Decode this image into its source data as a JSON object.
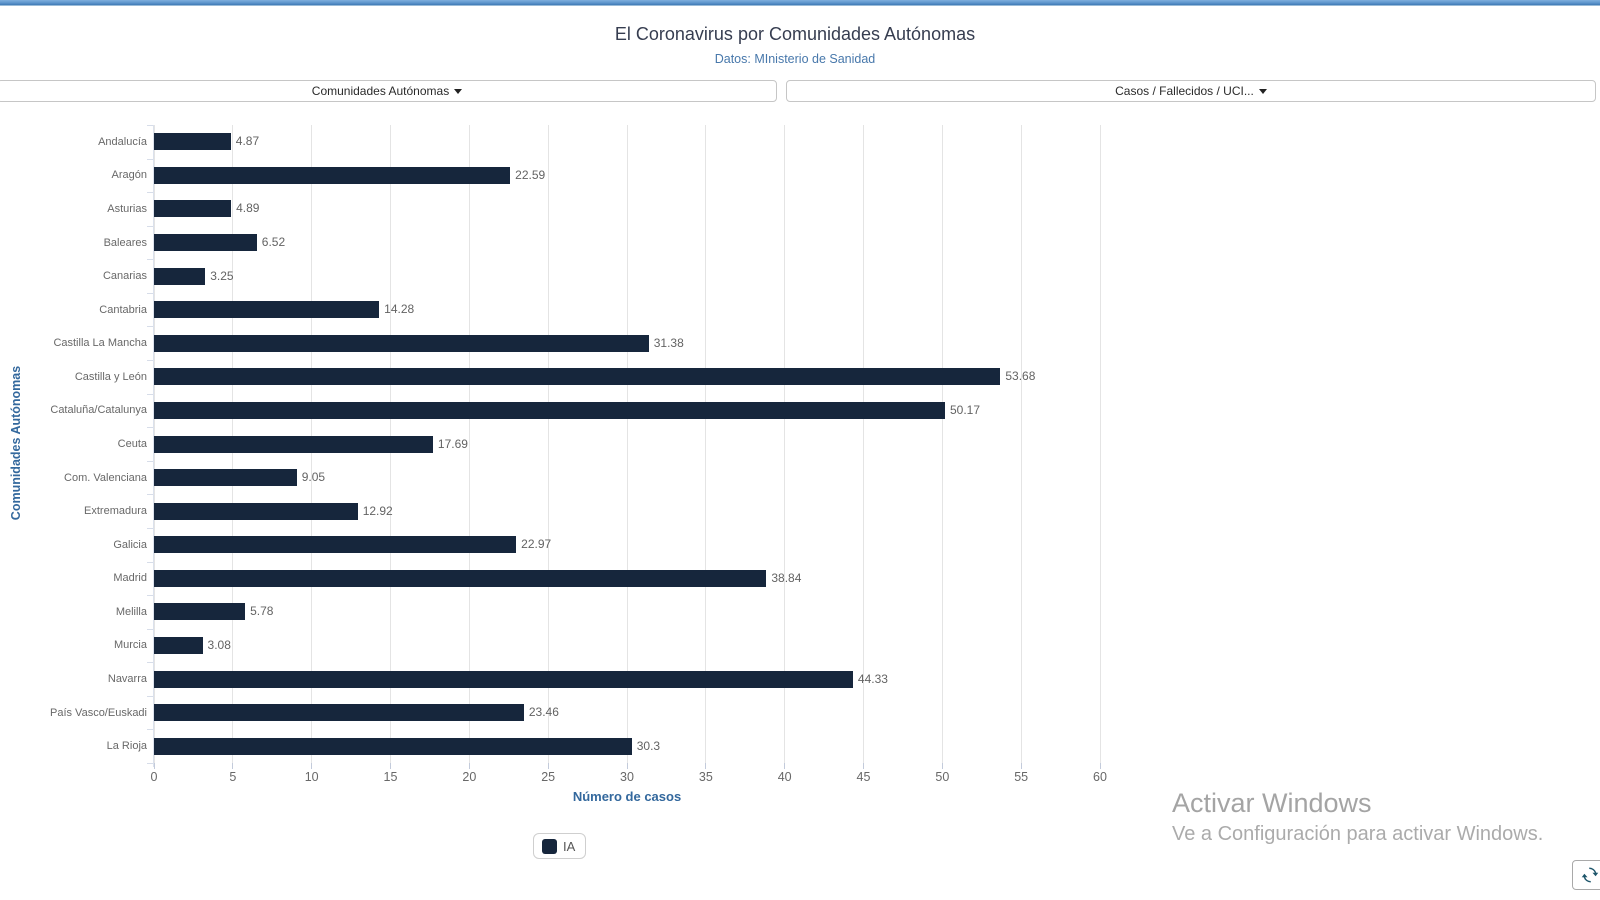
{
  "header": {
    "title": "El Coronavirus por Comunidades Autónomas",
    "subtitle": "Datos: MInisterio de Sanidad"
  },
  "controls": {
    "left_dropdown": {
      "label": "Comunidades Autónomas"
    },
    "right_dropdown": {
      "label": "Casos / Fallecidos / UCI..."
    }
  },
  "chart_data": {
    "type": "bar",
    "orientation": "horizontal",
    "title": "El Coronavirus por Comunidades Autónomas",
    "subtitle": "Datos: MInisterio de Sanidad",
    "categories": [
      "Andalucía",
      "Aragón",
      "Asturias",
      "Baleares",
      "Canarias",
      "Cantabria",
      "Castilla La Mancha",
      "Castilla y León",
      "Cataluña/Catalunya",
      "Ceuta",
      "Com. Valenciana",
      "Extremadura",
      "Galicia",
      "Madrid",
      "Melilla",
      "Murcia",
      "Navarra",
      "País Vasco/Euskadi",
      "La Rioja"
    ],
    "values": [
      4.87,
      22.59,
      4.89,
      6.52,
      3.25,
      14.28,
      31.38,
      53.68,
      50.17,
      17.69,
      9.05,
      12.92,
      22.97,
      38.84,
      5.78,
      3.08,
      44.33,
      23.46,
      30.3
    ],
    "series_name": "IA",
    "xlabel": "Número de casos",
    "ylabel": "Comunidades Autónomas",
    "xlim": [
      0,
      60
    ],
    "xticks": [
      0,
      5,
      10,
      15,
      20,
      25,
      30,
      35,
      40,
      45,
      50,
      55,
      60
    ],
    "grid": true,
    "legend_position": "bottom",
    "bar_color": "#16263c"
  },
  "legend": {
    "label": "IA",
    "swatch_color": "#16263c"
  },
  "watermark": {
    "line1": "Activar Windows",
    "line2": "Ve a Configuración para activar Windows."
  },
  "colors": {
    "accent_blue": "#33689d",
    "subtitle_blue": "#4878ab",
    "bar_navy": "#16263c",
    "refresh_icon": "#1e566b"
  }
}
